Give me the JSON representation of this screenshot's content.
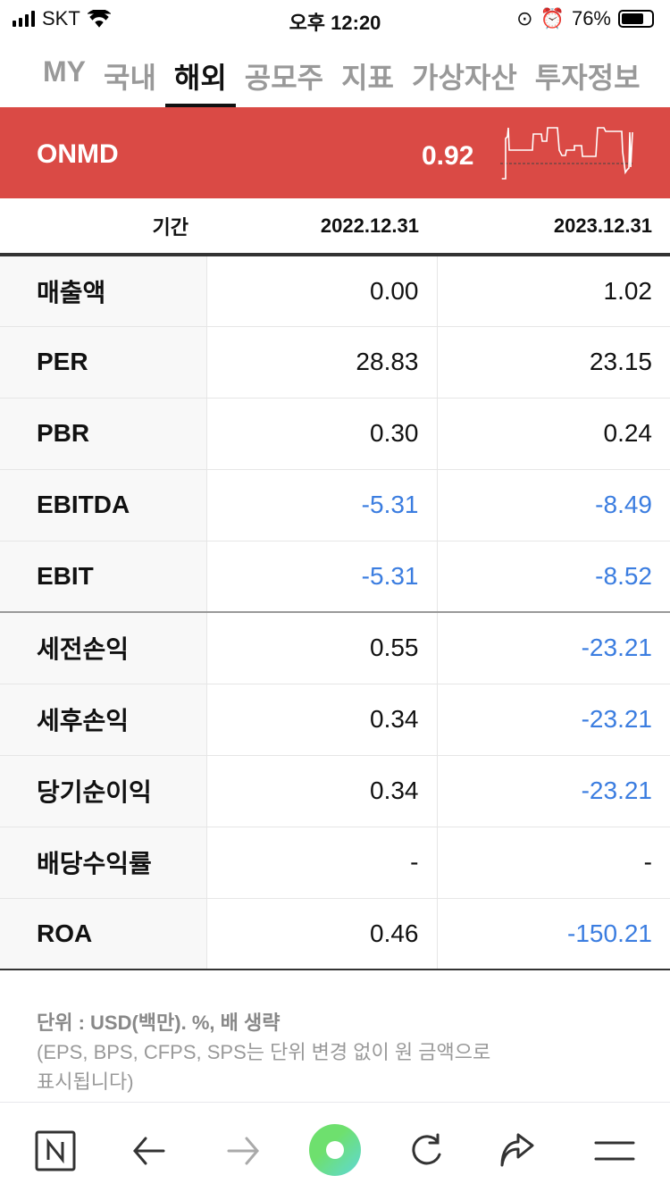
{
  "status_bar": {
    "carrier": "SKT",
    "time": "오후 12:20",
    "battery": "76%",
    "battery_level": 0.76
  },
  "tabs": [
    {
      "label": "MY"
    },
    {
      "label": "국내"
    },
    {
      "label": "해외",
      "active": true
    },
    {
      "label": "공모주"
    },
    {
      "label": "지표"
    },
    {
      "label": "가상자산"
    },
    {
      "label": "투자정보"
    }
  ],
  "stock": {
    "symbol": "ONMD",
    "price": "0.92",
    "color": "#da4a45"
  },
  "table": {
    "headers": [
      "기간",
      "2022.12.31",
      "2023.12.31"
    ],
    "rows": [
      {
        "label": "매출액",
        "values": [
          "0.00",
          "1.02"
        ]
      },
      {
        "label": "PER",
        "values": [
          "28.83",
          "23.15"
        ]
      },
      {
        "label": "PBR",
        "values": [
          "0.30",
          "0.24"
        ]
      },
      {
        "label": "EBITDA",
        "values": [
          "-5.31",
          "-8.49"
        ]
      },
      {
        "label": "EBIT",
        "values": [
          "-5.31",
          "-8.52"
        ]
      },
      {
        "label": "세전손익",
        "values": [
          "0.55",
          "-23.21"
        ]
      },
      {
        "label": "세후손익",
        "values": [
          "0.34",
          "-23.21"
        ]
      },
      {
        "label": "당기순이익",
        "values": [
          "0.34",
          "-23.21"
        ]
      },
      {
        "label": "배당수익률",
        "values": [
          "-",
          "-"
        ]
      },
      {
        "label": "ROA",
        "values": [
          "0.46",
          "-150.21"
        ]
      }
    ],
    "negative_color": "#3b7de0"
  },
  "note": {
    "unit": "단위 : USD(백만). %, 배 생략",
    "detail_1": "(EPS, BPS, CFPS, SPS는 단위 변경 없이 원 금액으로",
    "detail_2": "표시됩니다)"
  },
  "toolbar": {
    "icons": [
      "naver-n-icon",
      "back-arrow-icon",
      "forward-arrow-icon",
      "green-dot-icon",
      "refresh-icon",
      "share-icon",
      "menu-icon"
    ]
  }
}
